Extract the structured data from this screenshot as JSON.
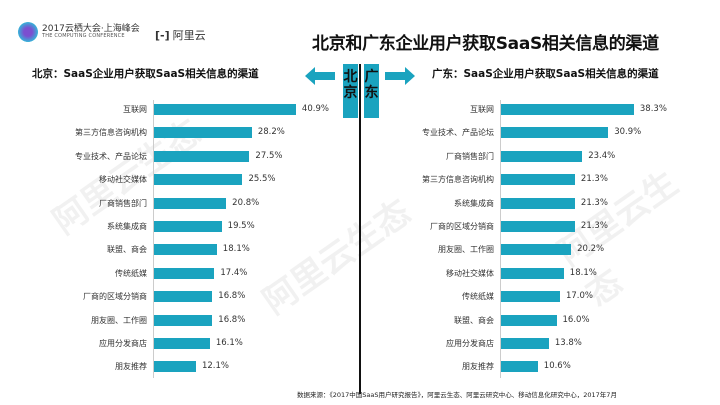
{
  "header": {
    "conference_cn": "2017云栖大会·上海峰会",
    "conference_en": "THE COMPUTING CONFERENCE",
    "brand": "阿里云",
    "title": "北京和广东企业用户获取SaaS相关信息的渠道"
  },
  "center": {
    "left_city": "北京",
    "right_city": "广东"
  },
  "footer": "数据来源：《2017中国SaaS用户研究报告》，阿里云生态、阿里云研究中心、移动信息化研究中心，2017年7月",
  "watermark": "阿里云生态",
  "colors": {
    "bar": "#1aa3bf"
  },
  "chart_data": [
    {
      "type": "bar",
      "orientation": "horizontal",
      "title": "北京：SaaS企业用户获取SaaS相关信息的渠道",
      "categories": [
        "互联网",
        "第三方信息咨询机构",
        "专业技术、产品论坛",
        "移动社交媒体",
        "厂商销售部门",
        "系统集成商",
        "联盟、商会",
        "传统纸媒",
        "厂商的区域分销商",
        "朋友圈、工作圈",
        "应用分发商店",
        "朋友推荐"
      ],
      "values": [
        40.9,
        28.2,
        27.5,
        25.5,
        20.8,
        19.5,
        18.1,
        17.4,
        16.8,
        16.8,
        16.1,
        12.1
      ],
      "labels": [
        "40.9%",
        "28.2%",
        "27.5%",
        "25.5%",
        "20.8%",
        "19.5%",
        "18.1%",
        "17.4%",
        "16.8%",
        "16.8%",
        "16.1%",
        "12.1%"
      ],
      "unit": "%",
      "grid": false
    },
    {
      "type": "bar",
      "orientation": "horizontal",
      "title": "广东：SaaS企业用户获取SaaS相关信息的渠道",
      "categories": [
        "互联网",
        "专业技术、产品论坛",
        "厂商销售部门",
        "第三方信息咨询机构",
        "系统集成商",
        "厂商的区域分销商",
        "朋友圈、工作圈",
        "移动社交媒体",
        "传统纸媒",
        "联盟、商会",
        "应用分发商店",
        "朋友推荐"
      ],
      "values": [
        38.3,
        30.9,
        23.4,
        21.3,
        21.3,
        21.3,
        20.2,
        18.1,
        17.0,
        16.0,
        13.8,
        10.6
      ],
      "labels": [
        "38.3%",
        "30.9%",
        "23.4%",
        "21.3%",
        "21.3%",
        "21.3%",
        "20.2%",
        "18.1%",
        "17.0%",
        "16.0%",
        "13.8%",
        "10.6%"
      ],
      "unit": "%",
      "grid": false
    }
  ]
}
